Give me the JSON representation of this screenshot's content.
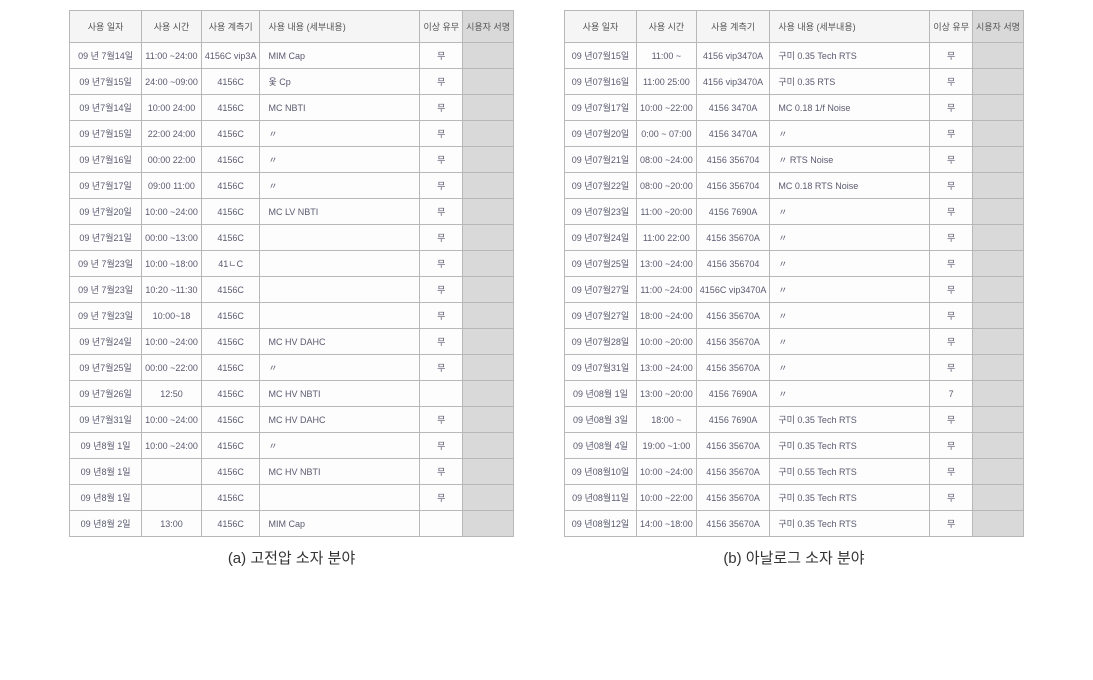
{
  "headers": {
    "date": "사용 일자",
    "time": "사용 시간",
    "instrument": "사용 계측기",
    "description": "사용 내용 (세부내용)",
    "flag": "이상 유무",
    "sign": "시용자 서명"
  },
  "captions": {
    "a": "(a) 고전압 소자 분야",
    "b": "(b) 아날로그 소자 분야"
  },
  "tableA": [
    {
      "date": "09 년 7월14일",
      "time": "11:00 ~24:00",
      "inst": "4156C vip3A",
      "desc": "MIM Cap",
      "flag": "무"
    },
    {
      "date": "09 년7월15일",
      "time": "24:00 ~09:00",
      "inst": "4156C",
      "desc": "옻 Cp",
      "flag": "무"
    },
    {
      "date": "09 년7월14일",
      "time": "10:00 24:00",
      "inst": "4156C",
      "desc": "MC   NBTI",
      "flag": "무"
    },
    {
      "date": "09 년7월15일",
      "time": "22:00 24:00",
      "inst": "4156C",
      "desc": "〃",
      "flag": "무"
    },
    {
      "date": "09 년7월16일",
      "time": "00:00 22:00",
      "inst": "4156C",
      "desc": "〃",
      "flag": "무"
    },
    {
      "date": "09 년7월17일",
      "time": "09:00 11:00",
      "inst": "4156C",
      "desc": "〃",
      "flag": "무"
    },
    {
      "date": "09 년7월20일",
      "time": "10:00 ~24:00",
      "inst": "4156C",
      "desc": "MC   LV NBTI",
      "flag": "무"
    },
    {
      "date": "09 년7월21일",
      "time": "00:00 ~13:00",
      "inst": "4156C",
      "desc": "",
      "flag": "무"
    },
    {
      "date": "09 년 7월23일",
      "time": "10:00 ~18:00",
      "inst": "41ㄴC",
      "desc": "",
      "flag": "무"
    },
    {
      "date": "09 년 7월23일",
      "time": "10:20 ~11:30",
      "inst": "4156C",
      "desc": "",
      "flag": "무"
    },
    {
      "date": "09 년 7월23일",
      "time": "10:00~18",
      "inst": "4156C",
      "desc": "",
      "flag": "무"
    },
    {
      "date": "09 년7월24일",
      "time": "10:00 ~24:00",
      "inst": "4156C",
      "desc": "MC   HV DAHC",
      "flag": "무"
    },
    {
      "date": "09 년7월25일",
      "time": "00:00 ~22:00",
      "inst": "4156C",
      "desc": "〃",
      "flag": "무"
    },
    {
      "date": "09 년7월26일",
      "time": "12:50",
      "inst": "4156C",
      "desc": "MC  HV  NBTI",
      "flag": ""
    },
    {
      "date": "09 년7월31일",
      "time": "10:00 ~24:00",
      "inst": "4156C",
      "desc": "MC   HV  DAHC",
      "flag": "무"
    },
    {
      "date": "09 년8월 1일",
      "time": "10:00 ~24:00",
      "inst": "4156C",
      "desc": "〃",
      "flag": "무"
    },
    {
      "date": "09 년8월 1일",
      "time": "",
      "inst": "4156C",
      "desc": "MC  HV  NBTI",
      "flag": "무"
    },
    {
      "date": "09 년8월 1일",
      "time": "",
      "inst": "4156C",
      "desc": "",
      "flag": "무"
    },
    {
      "date": "09 년8월 2일",
      "time": "13:00",
      "inst": "4156C",
      "desc": "MIM Cap",
      "flag": ""
    }
  ],
  "tableB": [
    {
      "date": "09 년07월15일",
      "time": "11:00 ~",
      "inst": "4156 vip3470A",
      "desc": "구미 0.35 Tech  RTS",
      "flag": "무"
    },
    {
      "date": "09 년07월16일",
      "time": "11:00 25:00",
      "inst": "4156 vip3470A",
      "desc": "구미 0.35  RTS",
      "flag": "무"
    },
    {
      "date": "09 년07월17일",
      "time": "10:00 ~22:00",
      "inst": "4156 3470A",
      "desc": "MC 0.18  1/f Noise",
      "flag": "무"
    },
    {
      "date": "09 년07월20일",
      "time": "0:00 ~ 07:00",
      "inst": "4156 3470A",
      "desc": "〃",
      "flag": "무"
    },
    {
      "date": "09 년07월21일",
      "time": "08:00 ~24:00",
      "inst": "4156 356704",
      "desc": "〃  RTS Noise",
      "flag": "무"
    },
    {
      "date": "09 년07월22일",
      "time": "08:00 ~20:00",
      "inst": "4156 356704",
      "desc": "MC  0.18  RTS Noise",
      "flag": "무"
    },
    {
      "date": "09 년07월23일",
      "time": "11:00 ~20:00",
      "inst": "4156 7690A",
      "desc": "〃",
      "flag": "무"
    },
    {
      "date": "09 년07월24일",
      "time": "11:00 22:00",
      "inst": "4156 35670A",
      "desc": "〃",
      "flag": "무"
    },
    {
      "date": "09 년07월25일",
      "time": "13:00 ~24:00",
      "inst": "4156 356704",
      "desc": "〃",
      "flag": "무"
    },
    {
      "date": "09 년07월27일",
      "time": "11:00 ~24:00",
      "inst": "4156C vip3470A",
      "desc": "〃",
      "flag": "무"
    },
    {
      "date": "09 년07월27일",
      "time": "18:00 ~24:00",
      "inst": "4156 35670A",
      "desc": "〃",
      "flag": "무"
    },
    {
      "date": "09 년07월28일",
      "time": "10:00 ~20:00",
      "inst": "4156 35670A",
      "desc": "〃",
      "flag": "무"
    },
    {
      "date": "09 년07월31일",
      "time": "13:00 ~24:00",
      "inst": "4156 35670A",
      "desc": "〃",
      "flag": "무"
    },
    {
      "date": "09 년08월 1일",
      "time": "13:00 ~20:00",
      "inst": "4156 7690A",
      "desc": "〃",
      "flag": "7"
    },
    {
      "date": "09 년08월 3일",
      "time": "18:00 ~",
      "inst": "4156 7690A",
      "desc": "구미 0.35 Tech  RTS",
      "flag": "무"
    },
    {
      "date": "09 년08월 4일",
      "time": "19:00 ~1:00",
      "inst": "4156 35670A",
      "desc": "구미 0.35 Tech   RTS",
      "flag": "무"
    },
    {
      "date": "09 년08월10일",
      "time": "10:00 ~24:00",
      "inst": "4156 35670A",
      "desc": "구미 0.55 Tech   RTS",
      "flag": "무"
    },
    {
      "date": "09 년08월11일",
      "time": "10:00 ~22:00",
      "inst": "4156 35670A",
      "desc": "구미 0.35 Tech   RTS",
      "flag": "무"
    },
    {
      "date": "09 년08월12일",
      "time": "14:00 ~18:00",
      "inst": "4156 35670A",
      "desc": "구미 0.35 Tech   RTS",
      "flag": "무"
    }
  ]
}
